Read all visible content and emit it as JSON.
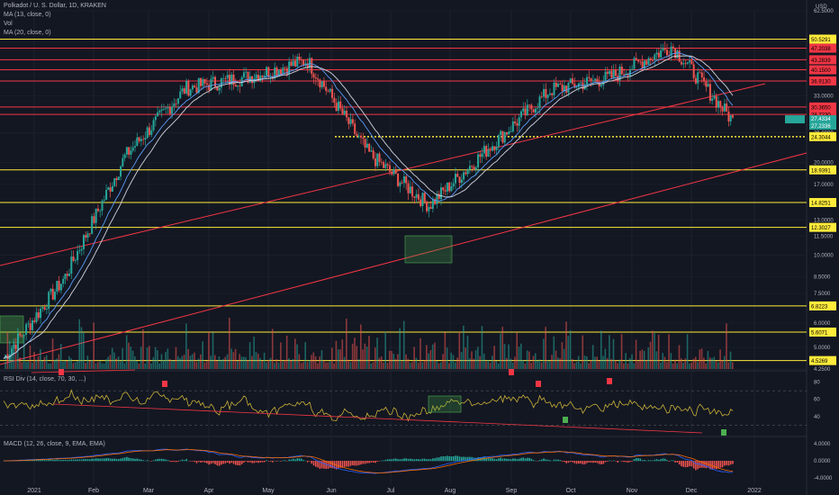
{
  "header": {
    "symbol": "Polkadot / U. S. Dollar, 1D, KRAKEN",
    "ma13": "MA (13, close, 0)",
    "vol": "Vol",
    "ma20": "MA (20, close, 0)"
  },
  "price_axis": {
    "currency": "USD",
    "ticks": [
      "62.5000",
      "50.0000",
      "40.0000",
      "33.0000",
      "25.0000",
      "20.0000",
      "17.0000",
      "13.0000",
      "11.5000",
      "10.0000",
      "8.5000",
      "7.5000",
      "6.0000",
      "5.0000",
      "4.2500"
    ],
    "current_price_label": "27.4334",
    "current_price_label2": "27.2336",
    "current_price": 27.4
  },
  "levels": [
    {
      "label": "50.5291",
      "price": 50.5291,
      "type": "support",
      "style": "solid"
    },
    {
      "label": "47.2038",
      "price": 47.2038,
      "type": "resistance",
      "style": "solid"
    },
    {
      "label": "43.2839",
      "price": 43.2839,
      "type": "resistance",
      "style": "solid"
    },
    {
      "label": "40.1500",
      "price": 40.15,
      "type": "resistance",
      "style": "solid"
    },
    {
      "label": "36.9130",
      "price": 36.913,
      "type": "resistance",
      "style": "solid"
    },
    {
      "label": "30.3650",
      "price": 30.365,
      "type": "resistance",
      "style": "solid"
    },
    {
      "label": "28.7230",
      "price": 28.723,
      "type": "resistance",
      "style": "solid"
    },
    {
      "label": "24.3044",
      "price": 24.3044,
      "type": "support",
      "style": "dotted"
    },
    {
      "label": "18.9391",
      "price": 18.9391,
      "type": "support",
      "style": "solid"
    },
    {
      "label": "14.8251",
      "price": 14.8251,
      "type": "support",
      "style": "solid"
    },
    {
      "label": "12.3027",
      "price": 12.3027,
      "type": "support",
      "style": "solid"
    },
    {
      "label": "6.8223",
      "price": 6.8223,
      "type": "support",
      "style": "solid"
    },
    {
      "label": "5.6071",
      "price": 5.6071,
      "type": "support",
      "style": "solid"
    },
    {
      "label": "4.5269",
      "price": 4.5269,
      "type": "support",
      "style": "solid"
    }
  ],
  "time_axis": [
    "2021",
    "Feb",
    "Mar",
    "Apr",
    "May",
    "Jun",
    "Jul",
    "Aug",
    "Sep",
    "Oct",
    "Nov",
    "Dec",
    "2022"
  ],
  "rsi": {
    "label": "RSI Div (14, close, 70, 30, ...)",
    "ticks": [
      "80",
      "60",
      "40"
    ]
  },
  "macd": {
    "label": "MACD (12, 26, close, 9, EMA, EMA)",
    "ticks": [
      "4.0000",
      "0.0000",
      "-4.0000"
    ]
  },
  "chart_data": {
    "type": "candlestick",
    "title": "Polkadot / U. S. Dollar, 1D, KRAKEN",
    "scale": "log",
    "ylim": [
      4.25,
      62.5
    ],
    "x": [
      "2021-01",
      "2021-02",
      "2021-03",
      "2021-04",
      "2021-05",
      "2021-06",
      "2021-07",
      "2021-08",
      "2021-09",
      "2021-10",
      "2021-11",
      "2021-12"
    ],
    "close": [
      8.4,
      21.0,
      35.0,
      38.0,
      43.0,
      21.5,
      14.5,
      22.5,
      34.5,
      38.0,
      48.0,
      27.4
    ],
    "colors": {
      "up": "#26a69a",
      "down": "#ef5350",
      "ma13": "#5b9cf6",
      "ma20": "#d1d4dc",
      "support": "#ffeb3b",
      "resistance": "#f23645",
      "rsi": "#c9b037"
    }
  }
}
